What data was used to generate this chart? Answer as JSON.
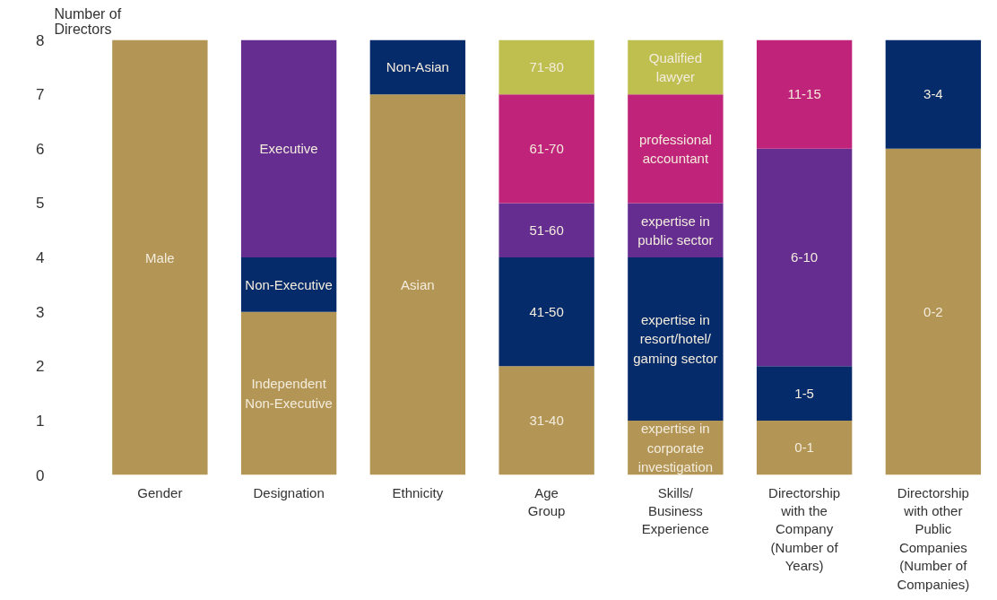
{
  "chart_data": {
    "type": "bar",
    "stacked": true,
    "ylabel": "Number of Directors",
    "categories": [
      "Gender",
      "Designation",
      "Ethnicity",
      "Age\nGroup",
      "Skills/\nBusiness\nExperience",
      "Directorship\nwith the\nCompany\n(Number of\nYears)",
      "Directorship\nwith other\nPublic\nCompanies\n(Number of\nCompanies)"
    ],
    "series": [
      {
        "values": [
          8,
          3,
          7,
          2,
          1,
          1,
          6
        ],
        "colors": [
          "#b39656",
          "#b39656",
          "#b39656",
          "#b39656",
          "#b39656",
          "#b39656",
          "#b39656"
        ],
        "value_labels": [
          "Male",
          "Independent\nNon-Executive",
          "Asian",
          "31-40",
          "expertise in\ncorporate\ninvestigation",
          "0-1",
          "0-2"
        ]
      },
      {
        "values": [
          null,
          1,
          1,
          2,
          3,
          1,
          2
        ],
        "colors": [
          null,
          "#062b6b",
          "#062b6b",
          "#062b6b",
          "#062b6b",
          "#062b6b",
          "#062b6b"
        ],
        "value_labels": [
          null,
          "Non-Executive",
          "Non-Asian",
          "41-50",
          "expertise in\nresort/hotel/\ngaming sector",
          "1-5",
          "3-4"
        ]
      },
      {
        "values": [
          null,
          4,
          null,
          1,
          1,
          4,
          null
        ],
        "colors": [
          null,
          "#652d90",
          null,
          "#652d90",
          "#652d90",
          "#652d90",
          null
        ],
        "value_labels": [
          null,
          "Executive",
          null,
          "51-60",
          "expertise in\npublic sector",
          "6-10",
          null
        ]
      },
      {
        "values": [
          null,
          null,
          null,
          2,
          2,
          2,
          null
        ],
        "colors": [
          null,
          null,
          null,
          "#c0237a",
          "#c0237a",
          "#c0237a",
          null
        ],
        "value_labels": [
          null,
          null,
          null,
          "61-70",
          "professional\naccountant",
          "11-15",
          null
        ]
      },
      {
        "values": [
          null,
          null,
          null,
          1,
          1,
          null,
          null
        ],
        "colors": [
          null,
          null,
          null,
          "#bfbf50",
          "#bfbf50",
          null,
          null
        ],
        "value_labels": [
          null,
          null,
          null,
          "71-80",
          "Qualified\nlawyer",
          null,
          null
        ]
      }
    ],
    "ylim": [
      0,
      8
    ],
    "yticks": [
      0,
      1,
      2,
      3,
      4,
      5,
      6,
      7,
      8
    ],
    "grid": false
  }
}
